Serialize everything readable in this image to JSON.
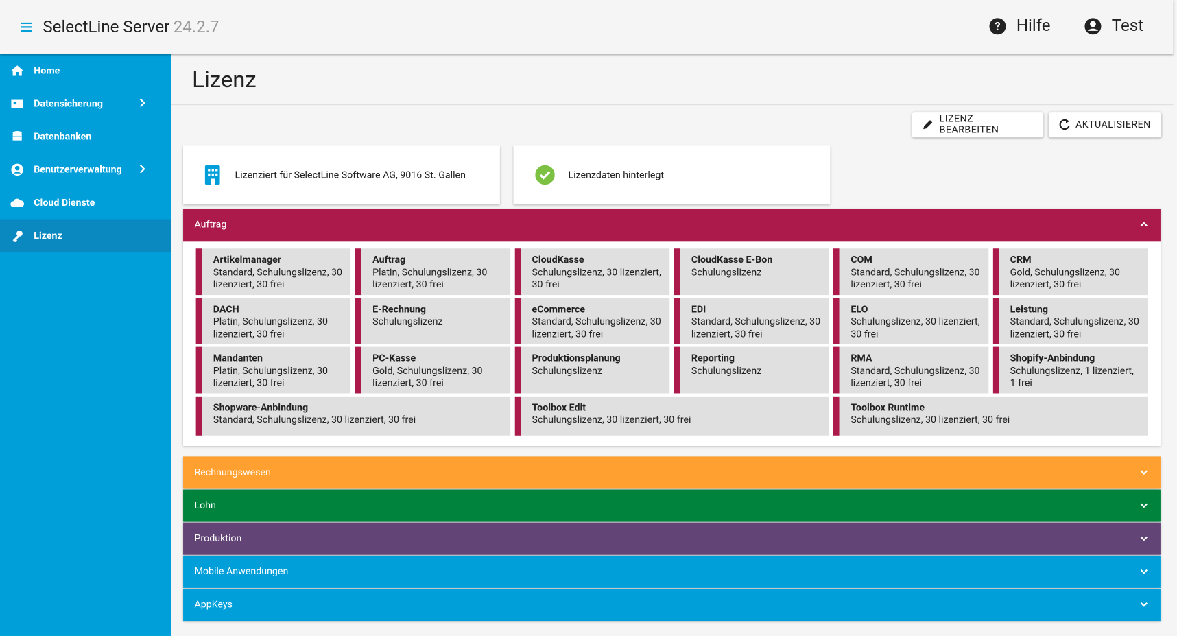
{
  "header": {
    "title": "SelectLine Server",
    "version": "24.2.7",
    "help": "Hilfe",
    "user": "Test"
  },
  "sidebar": [
    {
      "label": "Home"
    },
    {
      "label": "Datensicherung"
    },
    {
      "label": "Datenbanken"
    },
    {
      "label": "Benutzerverwaltung"
    },
    {
      "label": "Cloud Dienste"
    },
    {
      "label": "Lizenz"
    }
  ],
  "page": {
    "title": "Lizenz",
    "buttons": [
      "LIZENZ BEARBEITEN",
      "AKTUALISIEREN"
    ],
    "cards": [
      "Lizenziert für SelectLine Software AG, 9016 St. Gallen",
      "Lizenzdaten hinterlegt"
    ]
  },
  "sections": [
    {
      "name": "Auftrag",
      "color": "#ab1a4a",
      "rows": [
        [
          {
            "name": "Artikelmanager",
            "desc": "Standard, Schulungslizenz, 30 lizenziert, 30 frei"
          },
          {
            "name": "Auftrag",
            "desc": "Platin, Schulungslizenz, 30 lizenziert, 30 frei"
          },
          {
            "name": "CloudKasse",
            "desc": "Schulungslizenz, 30 lizenziert, 30 frei"
          },
          {
            "name": "CloudKasse E-Bon",
            "desc": "Schulungslizenz"
          },
          {
            "name": "COM",
            "desc": "Standard, Schulungslizenz, 30 lizenziert, 30 frei"
          },
          {
            "name": "CRM",
            "desc": "Gold, Schulungslizenz, 30 lizenziert, 30 frei"
          }
        ],
        [
          {
            "name": "DACH",
            "desc": "Platin, Schulungslizenz, 30 lizenziert, 30 frei"
          },
          {
            "name": "E-Rechnung",
            "desc": "Schulungslizenz"
          },
          {
            "name": "eCommerce",
            "desc": "Standard, Schulungslizenz, 30 lizenziert, 30 frei"
          },
          {
            "name": "EDI",
            "desc": "Standard, Schulungslizenz, 30 lizenziert, 30 frei"
          },
          {
            "name": "ELO",
            "desc": "Schulungslizenz, 30 lizenziert, 30 frei"
          },
          {
            "name": "Leistung",
            "desc": "Standard, Schulungslizenz, 30 lizenziert, 30 frei"
          }
        ],
        [
          {
            "name": "Mandanten",
            "desc": "Platin, Schulungslizenz, 30 lizenziert, 30 frei"
          },
          {
            "name": "PC-Kasse",
            "desc": "Gold, Schulungslizenz, 30 lizenziert, 30 frei"
          },
          {
            "name": "Produktionsplanung",
            "desc": "Schulungslizenz"
          },
          {
            "name": "Reporting",
            "desc": "Schulungslizenz"
          },
          {
            "name": "RMA",
            "desc": "Standard, Schulungslizenz, 30 lizenziert, 30 frei"
          },
          {
            "name": "Shopify-Anbindung",
            "desc": "Schulungslizenz, 1 lizenziert, 1 frei"
          }
        ],
        [
          {
            "name": "Shopware-Anbindung",
            "desc": "Standard, Schulungslizenz, 30 lizenziert, 30 frei"
          },
          {
            "name": "Toolbox Edit",
            "desc": "Schulungslizenz, 30 lizenziert, 30 frei"
          },
          {
            "name": "Toolbox Runtime",
            "desc": "Schulungslizenz, 30 lizenziert, 30 frei"
          }
        ]
      ]
    },
    {
      "name": "Rechnungswesen",
      "color": "#ffa030"
    },
    {
      "name": "Lohn",
      "color": "#00843d"
    },
    {
      "name": "Produktion",
      "color": "#624476"
    },
    {
      "name": "Mobile Anwendungen",
      "color": "#009fda"
    },
    {
      "name": "AppKeys",
      "color": "#009fda"
    }
  ]
}
